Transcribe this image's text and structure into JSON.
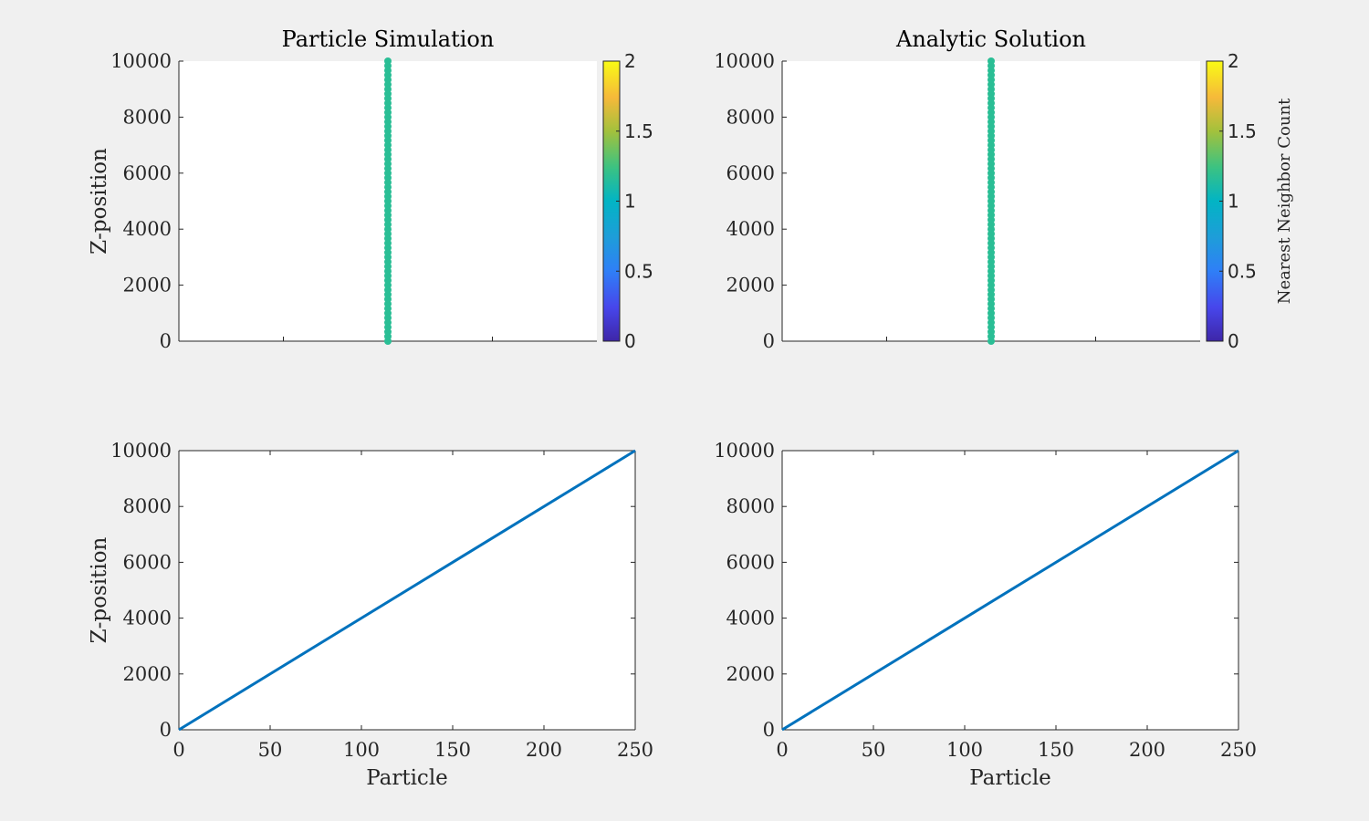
{
  "colors": {
    "figure_bg": "#f0f0f0",
    "axes_bg": "#ffffff",
    "axis_line": "#262626",
    "line_series": "#0072bd",
    "marker_color": "#1ec2b6"
  },
  "chart_data": [
    {
      "type": "scatter",
      "title": "Particle Simulation",
      "xlabel": "",
      "ylabel": "Z-position",
      "xlim": [
        0,
        1
      ],
      "ylim": [
        0,
        10000
      ],
      "xticks": [
        0.5
      ],
      "xticklabels": [],
      "yticks": [
        0,
        2000,
        4000,
        6000,
        8000,
        10000
      ],
      "yticklabels": [
        "0",
        "2000",
        "4000",
        "6000",
        "8000",
        "10000"
      ],
      "grid": false,
      "series": [
        {
          "x": 0.5,
          "y_from": 0,
          "y_to": 10000,
          "count_value": 1.17
        }
      ],
      "colorbar": {
        "ticks": [
          "0",
          "0.5",
          "1",
          "1.5",
          "2"
        ],
        "tick_values": [
          0,
          0.5,
          1,
          1.5,
          2
        ],
        "range": [
          0,
          2
        ],
        "colormap": "parula",
        "label": ""
      }
    },
    {
      "type": "scatter",
      "title": "Analytic Solution",
      "xlabel": "",
      "ylabel": "",
      "xlim": [
        0,
        1
      ],
      "ylim": [
        0,
        10000
      ],
      "xticks": [
        0.5
      ],
      "xticklabels": [],
      "yticks": [
        0,
        2000,
        4000,
        6000,
        8000,
        10000
      ],
      "yticklabels": [
        "0",
        "2000",
        "4000",
        "6000",
        "8000",
        "10000"
      ],
      "grid": false,
      "series": [
        {
          "x": 0.5,
          "y_from": 0,
          "y_to": 10000,
          "count_value": 1.17
        }
      ],
      "colorbar": {
        "ticks": [
          "0",
          "0.5",
          "1",
          "1.5",
          "2"
        ],
        "tick_values": [
          0,
          0.5,
          1,
          1.5,
          2
        ],
        "range": [
          0,
          2
        ],
        "colormap": "parula",
        "label": "Nearest Neighbor Count"
      }
    },
    {
      "type": "line",
      "title": "",
      "xlabel": "Particle",
      "ylabel": "Z-position",
      "xlim": [
        0,
        250
      ],
      "ylim": [
        0,
        10000
      ],
      "xticks": [
        0,
        50,
        100,
        150,
        200,
        250
      ],
      "xticklabels": [
        "0",
        "50",
        "100",
        "150",
        "200",
        "250"
      ],
      "yticks": [
        0,
        2000,
        4000,
        6000,
        8000,
        10000
      ],
      "yticklabels": [
        "0",
        "2000",
        "4000",
        "6000",
        "8000",
        "10000"
      ],
      "grid": false,
      "series": [
        {
          "x": [
            0,
            250
          ],
          "y": [
            0,
            10000
          ]
        }
      ]
    },
    {
      "type": "line",
      "title": "",
      "xlabel": "Particle",
      "ylabel": "",
      "xlim": [
        0,
        250
      ],
      "ylim": [
        0,
        10000
      ],
      "xticks": [
        0,
        50,
        100,
        150,
        200,
        250
      ],
      "xticklabels": [
        "0",
        "50",
        "100",
        "150",
        "200",
        "250"
      ],
      "yticks": [
        0,
        2000,
        4000,
        6000,
        8000,
        10000
      ],
      "yticklabels": [
        "0",
        "2000",
        "4000",
        "6000",
        "8000",
        "10000"
      ],
      "grid": false,
      "series": [
        {
          "x": [
            0,
            250
          ],
          "y": [
            0,
            10000
          ]
        }
      ]
    }
  ]
}
